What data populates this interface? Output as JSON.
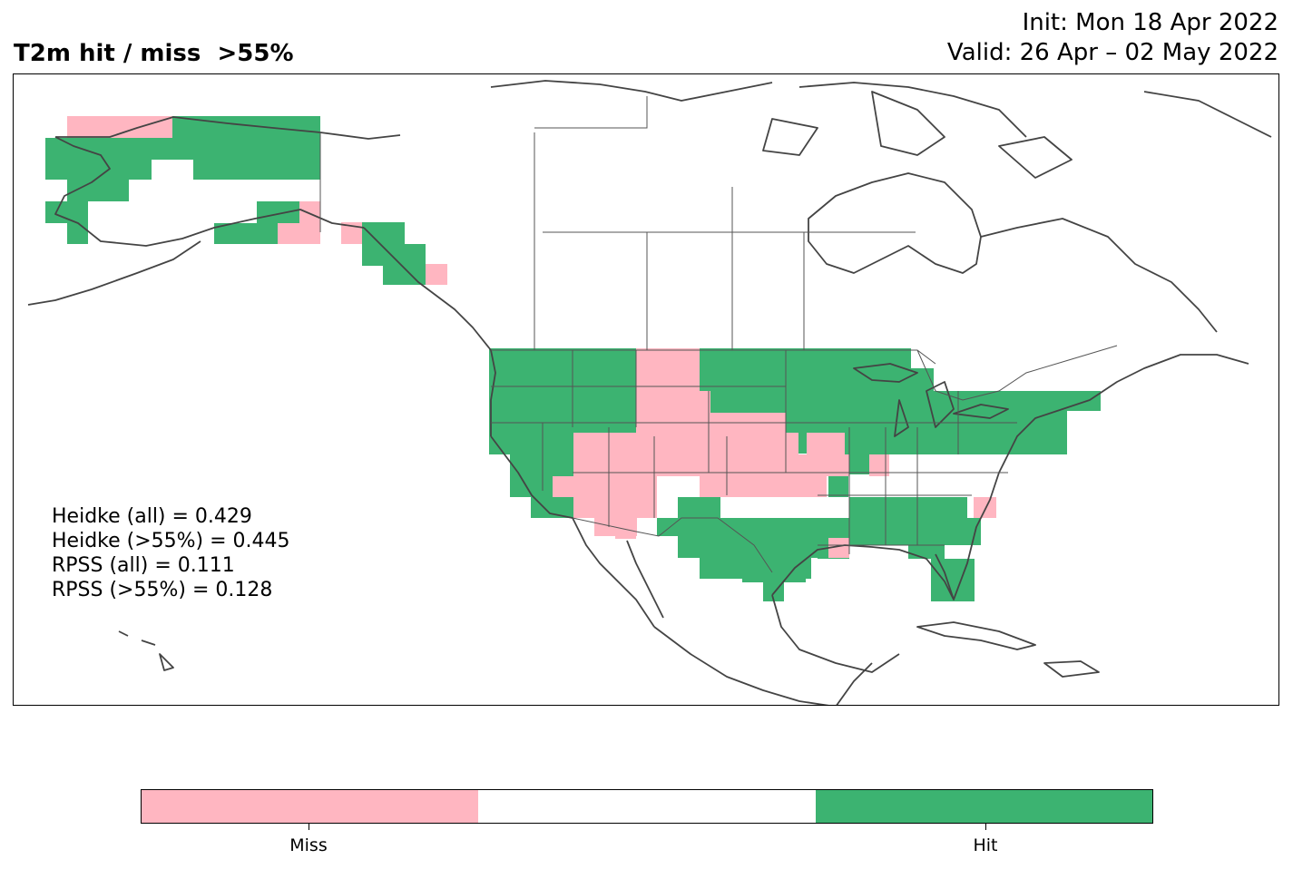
{
  "header": {
    "title": "T2m hit / miss  >55%",
    "init": "Init: Mon 18 Apr 2022",
    "valid": "Valid: 26 Apr – 02 May 2022"
  },
  "stats": [
    "Heidke (all) = 0.429",
    "Heidke (>55%) = 0.445",
    "RPSS (all) = 0.111",
    "RPSS (>55%) = 0.128"
  ],
  "legend": {
    "categories": [
      "Miss",
      "",
      "Hit"
    ],
    "colors": [
      "#ffb6c1",
      "#ffffff",
      "#3cb371"
    ],
    "tick_labels": [
      "Miss",
      "Hit"
    ]
  },
  "colors": {
    "hit": "#3cb371",
    "miss": "#ffb6c1",
    "coast": "#444444",
    "border": "#555555"
  }
}
